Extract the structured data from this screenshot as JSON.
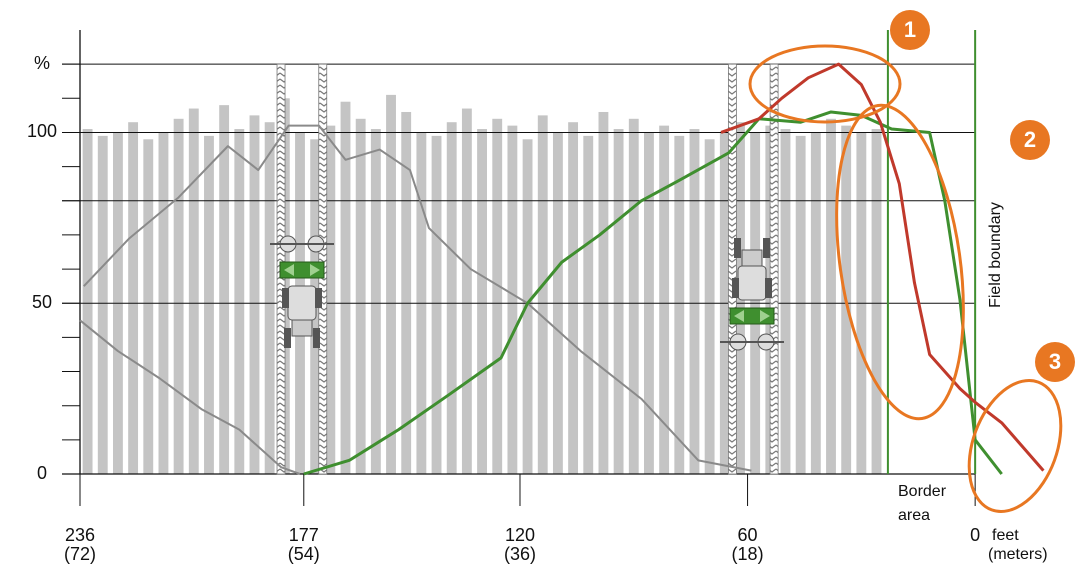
{
  "chart_data": {
    "type": "line",
    "xlim": [
      236,
      -20
    ],
    "ylim": [
      0,
      130
    ],
    "xticks": [
      236,
      177,
      120,
      60,
      0
    ],
    "xtick_sublabels": [
      "(72)",
      "(54)",
      "(36)",
      "(18)"
    ],
    "xlabel": "feet",
    "xlabel2": "(meters)",
    "yticks": [
      0,
      50,
      100,
      {
        "value": 120,
        "label": "%"
      }
    ],
    "yminor_ticks": [
      10,
      20,
      30,
      40,
      60,
      70,
      80,
      90,
      110
    ],
    "grid_lines": [
      0,
      50,
      80,
      100,
      120
    ],
    "bars": {
      "color": "#c4c4c4",
      "x": [
        234,
        230,
        226,
        222,
        218,
        214,
        210,
        206,
        202,
        198,
        194,
        190,
        186,
        182,
        178,
        174,
        170,
        166,
        162,
        158,
        154,
        150,
        146,
        142,
        138,
        134,
        130,
        126,
        122,
        118,
        114,
        110,
        106,
        102,
        98,
        94,
        90,
        86,
        82,
        78,
        74,
        70,
        66,
        62,
        58,
        54,
        50,
        46,
        42,
        38,
        34,
        30,
        26
      ],
      "values": [
        101,
        99,
        100,
        103,
        98,
        100,
        104,
        107,
        99,
        108,
        101,
        105,
        103,
        110,
        100,
        98,
        102,
        109,
        104,
        101,
        111,
        106,
        100,
        99,
        103,
        107,
        101,
        104,
        102,
        98,
        105,
        100,
        103,
        99,
        106,
        101,
        104,
        100,
        102,
        99,
        101,
        98,
        100,
        103,
        100,
        102,
        101,
        99,
        100,
        104,
        102,
        100,
        101
      ]
    },
    "tramlines": [
      183,
      172,
      64,
      53
    ],
    "series": [
      {
        "color": "#8a8a8a",
        "x": [
          235,
          223,
          210,
          197,
          189,
          181,
          173,
          166,
          157,
          149,
          144,
          133,
          118,
          104,
          88,
          73,
          59
        ],
        "values": [
          55,
          69,
          81,
          96,
          89,
          102,
          102,
          92,
          95,
          89,
          72,
          60,
          50,
          36,
          22,
          4,
          1
        ]
      },
      {
        "color": "#8a8a8a",
        "x": [
          236,
          226,
          215,
          204,
          194,
          183,
          178
        ],
        "values": [
          45,
          36,
          28,
          19,
          13,
          2,
          0
        ]
      },
      {
        "color": "#3f8f2f",
        "x": [
          177,
          165,
          152,
          139,
          125,
          118,
          109,
          99,
          88,
          78,
          65,
          57,
          46,
          38,
          30,
          22,
          12,
          8,
          4,
          0,
          -7
        ],
        "values": [
          0,
          4,
          13,
          23,
          34,
          50,
          62,
          70,
          80,
          86,
          94,
          104,
          103,
          106,
          105,
          101,
          100,
          80,
          51,
          10,
          0
        ]
      },
      {
        "color": "#c0392b",
        "x": [
          67,
          57,
          51,
          44,
          36,
          30,
          25,
          20,
          16,
          12,
          4,
          0,
          -7,
          -18
        ],
        "values": [
          100,
          104,
          110,
          116,
          120,
          114,
          103,
          85,
          56,
          35,
          25,
          21,
          15,
          1
        ]
      }
    ],
    "vlines": [
      {
        "x": 23,
        "color": "#3f8f2f"
      },
      {
        "x": 0,
        "color": "#3f8f2f"
      }
    ],
    "field_boundary_label": "Field boundary",
    "border_label": [
      "Border",
      "area"
    ],
    "callouts": [
      "1",
      "2",
      "3"
    ]
  }
}
